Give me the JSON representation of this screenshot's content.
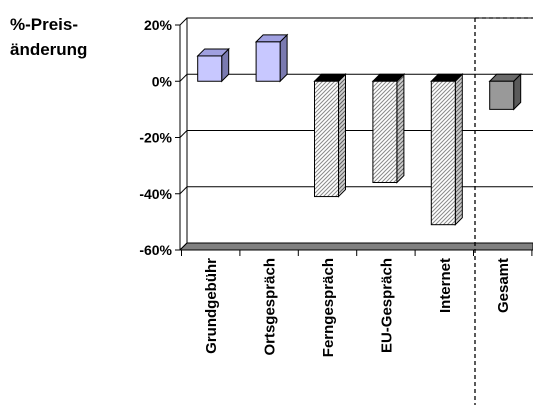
{
  "chart_data": {
    "type": "bar",
    "ylabel_lines": [
      "%-Preis-",
      "änderung"
    ],
    "categories": [
      "Grundgebühr",
      "Ortsgespräch",
      "Ferngespräch",
      "EU-Gespräch",
      "Internet",
      "Gesamt"
    ],
    "values": [
      9,
      14,
      -41,
      -36,
      -51,
      -10
    ],
    "yticks": [
      20,
      0,
      -20,
      -40,
      -60
    ],
    "ytick_labels": [
      "20%",
      "0%",
      "-20%",
      "-40%",
      "-60%"
    ],
    "ylim": [
      -60,
      20
    ],
    "grid": true,
    "legend": "none",
    "colors": {
      "increase": "#c8c8ff",
      "decrease": "#ffffff",
      "total": "#999999",
      "hatch": "#909090"
    }
  }
}
